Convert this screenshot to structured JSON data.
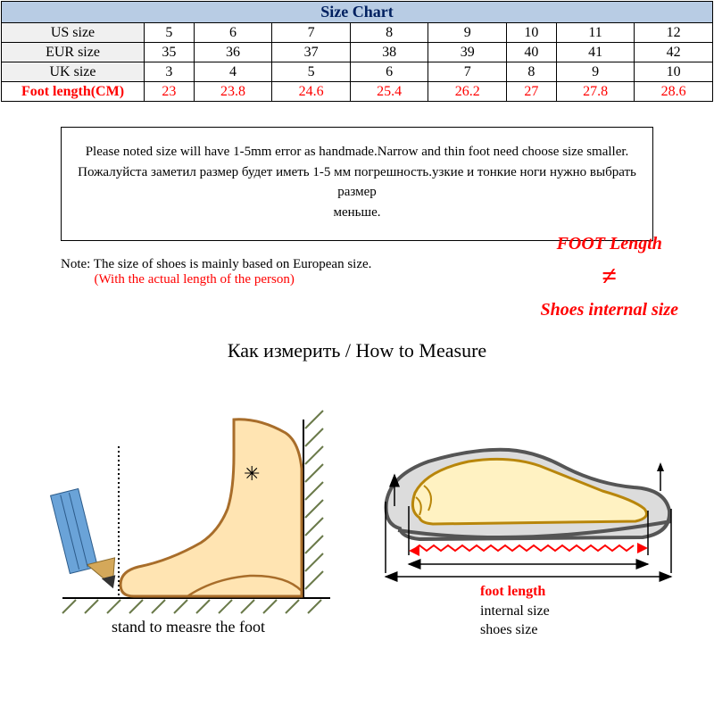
{
  "table": {
    "title": "Size Chart",
    "title_bg": "#b8cce4",
    "title_color": "#002060",
    "header_bg": "#f0f0f0",
    "border_color": "#000000",
    "rows": [
      {
        "label": "US size",
        "values": [
          "5",
          "6",
          "7",
          "8",
          "9",
          "10",
          "11",
          "12"
        ],
        "label_red": false,
        "val_red": false
      },
      {
        "label": "EUR size",
        "values": [
          "35",
          "36",
          "37",
          "38",
          "39",
          "40",
          "41",
          "42"
        ],
        "label_red": false,
        "val_red": false
      },
      {
        "label": "UK size",
        "values": [
          "3",
          "4",
          "5",
          "6",
          "7",
          "8",
          "9",
          "10"
        ],
        "label_red": false,
        "val_red": false
      },
      {
        "label": "Foot length(CM)",
        "values": [
          "23",
          "23.8",
          "24.6",
          "25.4",
          "26.2",
          "27",
          "27.8",
          "28.6"
        ],
        "label_red": true,
        "val_red": true
      }
    ]
  },
  "notebox": {
    "line1": "Please noted size will have 1-5mm error as handmade.Narrow and thin foot need choose size smaller.",
    "line2": "Пожалуйста заметил размер будет иметь 1-5 мм погрешность.узкие и тонкие ноги нужно выбрать размер",
    "line3": "меньше."
  },
  "note2": {
    "black": "Note: The size of shoes is mainly based on European size.",
    "red": "(With the actual length of the person)"
  },
  "neq": {
    "top": "FOOT Length",
    "sym": "≠",
    "bottom": "Shoes internal size"
  },
  "howtitle": "Как измерить / How to Measure",
  "standcap": "stand to measre the foot",
  "legend": {
    "foot": "foot length",
    "internal": "internal size",
    "shoes": "shoes size"
  },
  "colors": {
    "foot_fill": "#ffe4b2",
    "foot_stroke": "#a86d2a",
    "pencil_body": "#6aa3d8",
    "pencil_tip": "#d4a85a",
    "pencil_lead": "#333333",
    "wall_hatch": "#6a7a4a",
    "shoe_outer": "#555555",
    "shoe_fill": "#dcdcdc",
    "shoe_foot_fill": "#fff2c2",
    "shoe_foot_stroke": "#b8860b",
    "arrow": "#000000",
    "red": "#ff0000"
  }
}
